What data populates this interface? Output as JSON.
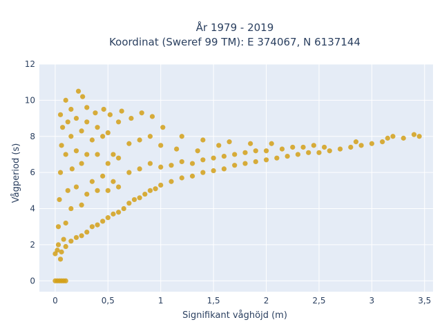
{
  "chart_data": {
    "type": "scatter",
    "title_line1": "År 1979 - 2019",
    "title_line2": "Koordinat (Sweref 99 TM): E 374067, N 6137144",
    "xlabel": "Signifikant våghöjd (m)",
    "ylabel": "Vågperiod (s)",
    "xlim": [
      -0.15,
      3.58
    ],
    "ylim": [
      -0.6,
      12.0
    ],
    "x_ticks": [
      {
        "value": 0,
        "label": "0"
      },
      {
        "value": 0.5,
        "label": "0,5"
      },
      {
        "value": 1,
        "label": "1"
      },
      {
        "value": 1.5,
        "label": "1,5"
      },
      {
        "value": 2,
        "label": "2"
      },
      {
        "value": 2.5,
        "label": "2,5"
      },
      {
        "value": 3,
        "label": "3"
      },
      {
        "value": 3.5,
        "label": "3,5"
      }
    ],
    "y_ticks": [
      {
        "value": 0,
        "label": "0"
      },
      {
        "value": 2,
        "label": "2"
      },
      {
        "value": 4,
        "label": "4"
      },
      {
        "value": 6,
        "label": "6"
      },
      {
        "value": 8,
        "label": "8"
      },
      {
        "value": 10,
        "label": "10"
      },
      {
        "value": 12,
        "label": "12"
      }
    ],
    "grid": true,
    "colors": {
      "marker": "#D4A017",
      "plot_background": "#E5ECF6",
      "grid": "#FFFFFF",
      "text": "#2A3F5F"
    },
    "series": [
      {
        "points": [
          [
            0.0,
            0.0
          ],
          [
            0.02,
            0.0
          ],
          [
            0.04,
            0.0
          ],
          [
            0.06,
            0.0
          ],
          [
            0.08,
            0.0
          ],
          [
            0.1,
            0.0
          ],
          [
            0.0,
            1.5
          ],
          [
            0.02,
            1.7
          ],
          [
            0.03,
            2.0
          ],
          [
            0.05,
            1.2
          ],
          [
            0.06,
            1.6
          ],
          [
            0.08,
            2.3
          ],
          [
            0.1,
            1.9
          ],
          [
            0.03,
            3.0
          ],
          [
            0.04,
            4.5
          ],
          [
            0.05,
            6.0
          ],
          [
            0.06,
            7.5
          ],
          [
            0.07,
            8.5
          ],
          [
            0.05,
            9.2
          ],
          [
            0.1,
            3.2
          ],
          [
            0.12,
            5.0
          ],
          [
            0.1,
            7.0
          ],
          [
            0.12,
            8.8
          ],
          [
            0.1,
            10.0
          ],
          [
            0.15,
            2.2
          ],
          [
            0.15,
            4.0
          ],
          [
            0.16,
            6.2
          ],
          [
            0.15,
            8.0
          ],
          [
            0.15,
            9.5
          ],
          [
            0.2,
            2.4
          ],
          [
            0.2,
            5.2
          ],
          [
            0.2,
            7.2
          ],
          [
            0.2,
            9.0
          ],
          [
            0.22,
            10.5
          ],
          [
            0.25,
            2.5
          ],
          [
            0.25,
            4.2
          ],
          [
            0.25,
            6.5
          ],
          [
            0.25,
            8.3
          ],
          [
            0.26,
            10.2
          ],
          [
            0.3,
            2.7
          ],
          [
            0.3,
            4.8
          ],
          [
            0.3,
            7.0
          ],
          [
            0.3,
            8.8
          ],
          [
            0.3,
            9.6
          ],
          [
            0.35,
            3.0
          ],
          [
            0.35,
            5.5
          ],
          [
            0.35,
            7.8
          ],
          [
            0.38,
            9.3
          ],
          [
            0.4,
            3.1
          ],
          [
            0.4,
            5.0
          ],
          [
            0.4,
            7.0
          ],
          [
            0.4,
            8.5
          ],
          [
            0.45,
            3.3
          ],
          [
            0.45,
            5.8
          ],
          [
            0.45,
            8.0
          ],
          [
            0.46,
            9.5
          ],
          [
            0.5,
            3.5
          ],
          [
            0.5,
            5.0
          ],
          [
            0.5,
            6.5
          ],
          [
            0.5,
            8.2
          ],
          [
            0.52,
            9.2
          ],
          [
            0.55,
            3.7
          ],
          [
            0.55,
            5.5
          ],
          [
            0.55,
            7.0
          ],
          [
            0.6,
            8.8
          ],
          [
            0.6,
            3.8
          ],
          [
            0.6,
            5.2
          ],
          [
            0.6,
            6.8
          ],
          [
            0.63,
            9.4
          ],
          [
            0.65,
            4.0
          ],
          [
            0.7,
            4.3
          ],
          [
            0.7,
            6.0
          ],
          [
            0.7,
            7.6
          ],
          [
            0.72,
            9.0
          ],
          [
            0.75,
            4.5
          ],
          [
            0.8,
            4.6
          ],
          [
            0.8,
            6.2
          ],
          [
            0.8,
            7.8
          ],
          [
            0.82,
            9.3
          ],
          [
            0.85,
            4.8
          ],
          [
            0.9,
            5.0
          ],
          [
            0.9,
            6.5
          ],
          [
            0.9,
            8.0
          ],
          [
            0.92,
            9.1
          ],
          [
            0.95,
            5.1
          ],
          [
            1.0,
            5.3
          ],
          [
            1.0,
            6.3
          ],
          [
            1.0,
            7.5
          ],
          [
            1.02,
            8.5
          ],
          [
            1.1,
            5.5
          ],
          [
            1.1,
            6.4
          ],
          [
            1.15,
            7.3
          ],
          [
            1.2,
            5.7
          ],
          [
            1.2,
            6.6
          ],
          [
            1.2,
            8.0
          ],
          [
            1.3,
            5.8
          ],
          [
            1.3,
            6.5
          ],
          [
            1.35,
            7.2
          ],
          [
            1.4,
            6.0
          ],
          [
            1.4,
            6.7
          ],
          [
            1.4,
            7.8
          ],
          [
            1.5,
            6.1
          ],
          [
            1.5,
            6.8
          ],
          [
            1.55,
            7.5
          ],
          [
            1.6,
            6.2
          ],
          [
            1.6,
            6.9
          ],
          [
            1.65,
            7.7
          ],
          [
            1.7,
            6.4
          ],
          [
            1.7,
            7.0
          ],
          [
            1.8,
            6.5
          ],
          [
            1.8,
            7.1
          ],
          [
            1.85,
            7.6
          ],
          [
            1.9,
            6.6
          ],
          [
            1.9,
            7.2
          ],
          [
            2.0,
            6.7
          ],
          [
            2.0,
            7.2
          ],
          [
            2.05,
            7.6
          ],
          [
            2.1,
            6.8
          ],
          [
            2.15,
            7.3
          ],
          [
            2.2,
            6.9
          ],
          [
            2.25,
            7.4
          ],
          [
            2.3,
            7.0
          ],
          [
            2.35,
            7.4
          ],
          [
            2.4,
            7.1
          ],
          [
            2.45,
            7.5
          ],
          [
            2.5,
            7.1
          ],
          [
            2.55,
            7.4
          ],
          [
            2.6,
            7.2
          ],
          [
            2.7,
            7.3
          ],
          [
            2.8,
            7.4
          ],
          [
            2.85,
            7.7
          ],
          [
            2.9,
            7.5
          ],
          [
            3.0,
            7.6
          ],
          [
            3.1,
            7.7
          ],
          [
            3.15,
            7.9
          ],
          [
            3.2,
            8.0
          ],
          [
            3.3,
            7.9
          ],
          [
            3.4,
            8.1
          ],
          [
            3.45,
            8.0
          ]
        ]
      }
    ]
  }
}
